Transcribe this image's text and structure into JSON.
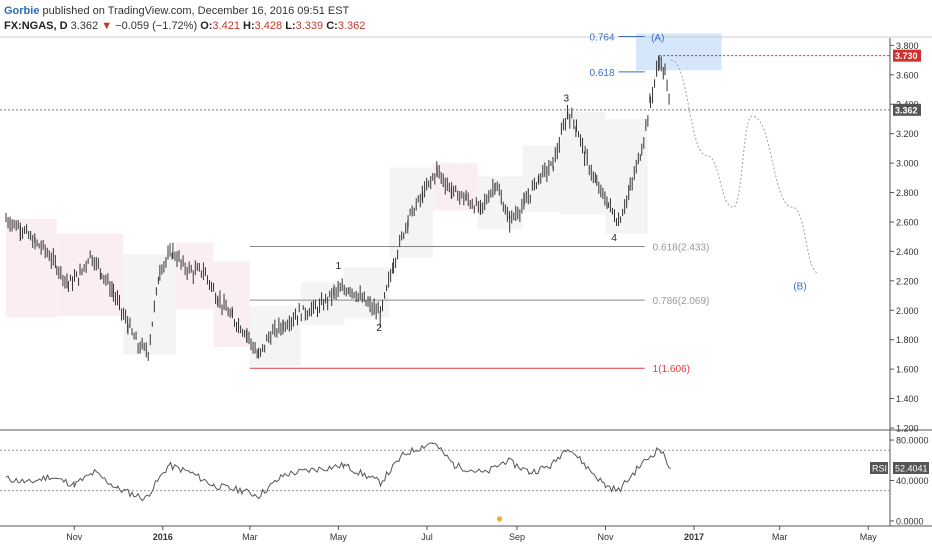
{
  "header": {
    "author": "Gorbie",
    "published": "published on TradingView.com, December 16, 2016 09:51 EST",
    "symbol": "FX:NGAS, D",
    "last": "3.362",
    "change": "−0.059 (−1.72%)",
    "o_label": "O:",
    "o": "3.421",
    "h_label": "H:",
    "h": "3.428",
    "l_label": "L:",
    "l": "3.339",
    "c_label": "C:",
    "c": "3.362",
    "change_direction_icon": "triangle-down-icon"
  },
  "colors": {
    "up_bar": "#333333",
    "fib_line": "#888888",
    "fib_level_1": "#e53935",
    "wave_label": "#222222",
    "projection_label": "#3a6fc2",
    "projection_path": "#9aa3ad",
    "target_box": "#d6e6fb",
    "price_badge_high": "#d32f2f",
    "price_badge_last": "#555555",
    "rsi_line": "#555555",
    "marker_dot": "#f5a623"
  },
  "chart_data": [
    {
      "type": "line",
      "title": "FX:NGAS, D",
      "xlabel": "",
      "ylabel": "",
      "x_ticks": [
        "Nov",
        "2016",
        "Mar",
        "May",
        "Jul",
        "Sep",
        "Nov",
        "2017",
        "Mar",
        "May"
      ],
      "x_tick_dates": [
        "2015-11-01",
        "2016-01-01",
        "2016-03-01",
        "2016-05-01",
        "2016-07-01",
        "2016-09-01",
        "2016-11-01",
        "2017-01-01",
        "2017-03-01",
        "2017-05-01"
      ],
      "y_ticks": [
        "3.800",
        "3.600",
        "3.400",
        "3.200",
        "3.000",
        "2.800",
        "2.600",
        "2.400",
        "2.200",
        "2.000",
        "1.800",
        "1.600",
        "1.400",
        "1.200"
      ],
      "ylim": [
        1.2,
        3.85
      ],
      "grid": false,
      "series": [
        {
          "name": "",
          "points": [
            [
              "2015-09-15",
              2.62
            ],
            [
              "2015-09-25",
              2.56
            ],
            [
              "2015-10-05",
              2.46
            ],
            [
              "2015-10-12",
              2.41
            ],
            [
              "2015-10-20",
              2.3
            ],
            [
              "2015-10-28",
              2.18
            ],
            [
              "2015-11-05",
              2.24
            ],
            [
              "2015-11-12",
              2.38
            ],
            [
              "2015-11-20",
              2.26
            ],
            [
              "2015-11-28",
              2.12
            ],
            [
              "2015-12-08",
              1.9
            ],
            [
              "2015-12-15",
              1.76
            ],
            [
              "2015-12-22",
              1.72
            ],
            [
              "2015-12-30",
              2.28
            ],
            [
              "2016-01-08",
              2.4
            ],
            [
              "2016-01-15",
              2.3
            ],
            [
              "2016-01-22",
              2.26
            ],
            [
              "2016-01-29",
              2.27
            ],
            [
              "2016-02-08",
              2.08
            ],
            [
              "2016-02-18",
              1.95
            ],
            [
              "2016-02-28",
              1.84
            ],
            [
              "2016-03-07",
              1.68
            ],
            [
              "2016-03-14",
              1.82
            ],
            [
              "2016-03-24",
              1.9
            ],
            [
              "2016-04-04",
              1.98
            ],
            [
              "2016-04-18",
              2.02
            ],
            [
              "2016-04-28",
              2.12
            ],
            [
              "2016-05-09",
              2.15
            ],
            [
              "2016-05-20",
              2.05
            ],
            [
              "2016-05-30",
              1.97
            ],
            [
              "2016-06-08",
              2.32
            ],
            [
              "2016-06-18",
              2.62
            ],
            [
              "2016-06-28",
              2.78
            ],
            [
              "2016-07-08",
              2.95
            ],
            [
              "2016-07-18",
              2.81
            ],
            [
              "2016-07-28",
              2.76
            ],
            [
              "2016-08-07",
              2.68
            ],
            [
              "2016-08-17",
              2.86
            ],
            [
              "2016-08-27",
              2.61
            ],
            [
              "2016-09-06",
              2.72
            ],
            [
              "2016-09-16",
              2.9
            ],
            [
              "2016-09-26",
              2.99
            ],
            [
              "2016-10-06",
              3.34
            ],
            [
              "2016-10-12",
              3.25
            ],
            [
              "2016-10-18",
              3.05
            ],
            [
              "2016-10-26",
              2.85
            ],
            [
              "2016-11-03",
              2.72
            ],
            [
              "2016-11-10",
              2.6
            ],
            [
              "2016-11-18",
              2.82
            ],
            [
              "2016-11-26",
              3.1
            ],
            [
              "2016-12-02",
              3.42
            ],
            [
              "2016-12-08",
              3.7
            ],
            [
              "2016-12-12",
              3.6
            ],
            [
              "2016-12-16",
              3.362
            ]
          ]
        }
      ],
      "fib_levels": [
        {
          "label": "0.764",
          "value": 3.86
        },
        {
          "label": "0.618",
          "value": 3.62
        },
        {
          "label": "0.618(2.433)",
          "value": 2.433
        },
        {
          "label": "0.786(2.069)",
          "value": 2.069
        },
        {
          "label": "1(1.606)",
          "value": 1.606
        }
      ],
      "wave_labels": [
        {
          "label": "1",
          "date": "2016-05-01",
          "value": 2.28
        },
        {
          "label": "2",
          "date": "2016-05-29",
          "value": 1.86
        },
        {
          "label": "3",
          "date": "2016-10-05",
          "value": 3.42
        },
        {
          "label": "4",
          "date": "2016-11-07",
          "value": 2.47
        },
        {
          "label": "(A)",
          "date": "2016-12-07",
          "value": 3.83
        },
        {
          "label": "(B)",
          "date": "2017-03-15",
          "value": 2.14
        }
      ],
      "projection": [
        [
          "2016-12-16",
          3.7
        ],
        [
          "2017-01-10",
          3.05
        ],
        [
          "2017-01-28",
          2.7
        ],
        [
          "2017-02-10",
          3.32
        ],
        [
          "2017-03-10",
          2.7
        ],
        [
          "2017-03-28",
          2.25
        ]
      ],
      "price_badges": [
        {
          "label": "3.730",
          "value": 3.73
        },
        {
          "label": "3.362",
          "value": 3.362
        }
      ],
      "legend": "none"
    },
    {
      "type": "line",
      "title": "RSI",
      "xlabel": "",
      "ylabel": "",
      "y_ticks": [
        "80.0000",
        "40.0000",
        "0.0000"
      ],
      "ylim": [
        -5,
        88
      ],
      "reference_levels": [
        70,
        30
      ],
      "series": [
        {
          "name": "RSI",
          "points": [
            [
              "2015-09-15",
              42
            ],
            [
              "2015-10-01",
              38
            ],
            [
              "2015-10-15",
              44
            ],
            [
              "2015-11-01",
              36
            ],
            [
              "2015-11-15",
              48
            ],
            [
              "2015-12-01",
              32
            ],
            [
              "2015-12-20",
              22
            ],
            [
              "2016-01-05",
              55
            ],
            [
              "2016-01-20",
              48
            ],
            [
              "2016-02-05",
              35
            ],
            [
              "2016-02-25",
              30
            ],
            [
              "2016-03-07",
              25
            ],
            [
              "2016-03-25",
              46
            ],
            [
              "2016-04-15",
              51
            ],
            [
              "2016-05-05",
              55
            ],
            [
              "2016-05-30",
              38
            ],
            [
              "2016-06-15",
              66
            ],
            [
              "2016-07-05",
              78
            ],
            [
              "2016-07-20",
              55
            ],
            [
              "2016-08-10",
              47
            ],
            [
              "2016-08-25",
              60
            ],
            [
              "2016-09-10",
              48
            ],
            [
              "2016-09-25",
              55
            ],
            [
              "2016-10-06",
              74
            ],
            [
              "2016-10-20",
              52
            ],
            [
              "2016-11-01",
              35
            ],
            [
              "2016-11-10",
              30
            ],
            [
              "2016-11-25",
              55
            ],
            [
              "2016-12-08",
              72
            ],
            [
              "2016-12-16",
              52.4041
            ]
          ]
        }
      ],
      "price_badges": [
        {
          "label": "RSI",
          "value": 52.4041
        },
        {
          "label": "52.4041",
          "value": 52.4041
        }
      ],
      "markers": [
        {
          "date": "2016-08-20",
          "value": 2
        }
      ]
    }
  ]
}
